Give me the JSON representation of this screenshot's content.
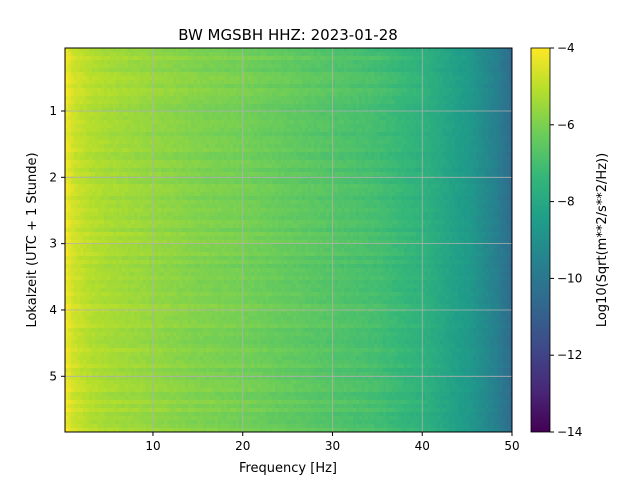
{
  "chart_data": {
    "type": "heatmap",
    "title": "BW MGSBH  HHZ: 2023-01-28",
    "xlabel": "Frequency [Hz]",
    "ylabel": "Lokalzeit (UTC + 1 Stunde)",
    "xlim": [
      0.2,
      50
    ],
    "ylim": [
      5.84,
      0.05
    ],
    "xticks": [
      10,
      20,
      30,
      40,
      50
    ],
    "yticks": [
      1,
      2,
      3,
      4,
      5
    ],
    "grid": true,
    "colorbar": {
      "label": "Log10(Sqrt(m**2/s**2/Hz))",
      "range": [
        -14,
        -4
      ],
      "ticks": [
        "−4",
        "−6",
        "−8",
        "−10",
        "−12",
        "−14"
      ],
      "colormap": "viridis"
    },
    "frequency_profile": {
      "frequency_hz": [
        0.2,
        1,
        3,
        5,
        10,
        15,
        20,
        25,
        30,
        35,
        40,
        42,
        45,
        48,
        50
      ],
      "log10_amplitude": [
        -4.2,
        -4.7,
        -5.1,
        -5.3,
        -5.6,
        -5.9,
        -6.1,
        -6.4,
        -6.7,
        -7.0,
        -7.6,
        -8.0,
        -8.6,
        -9.6,
        -10.6
      ]
    },
    "notable_rows_hour": [
      0.4,
      4.0,
      5.0,
      5.6
    ]
  }
}
